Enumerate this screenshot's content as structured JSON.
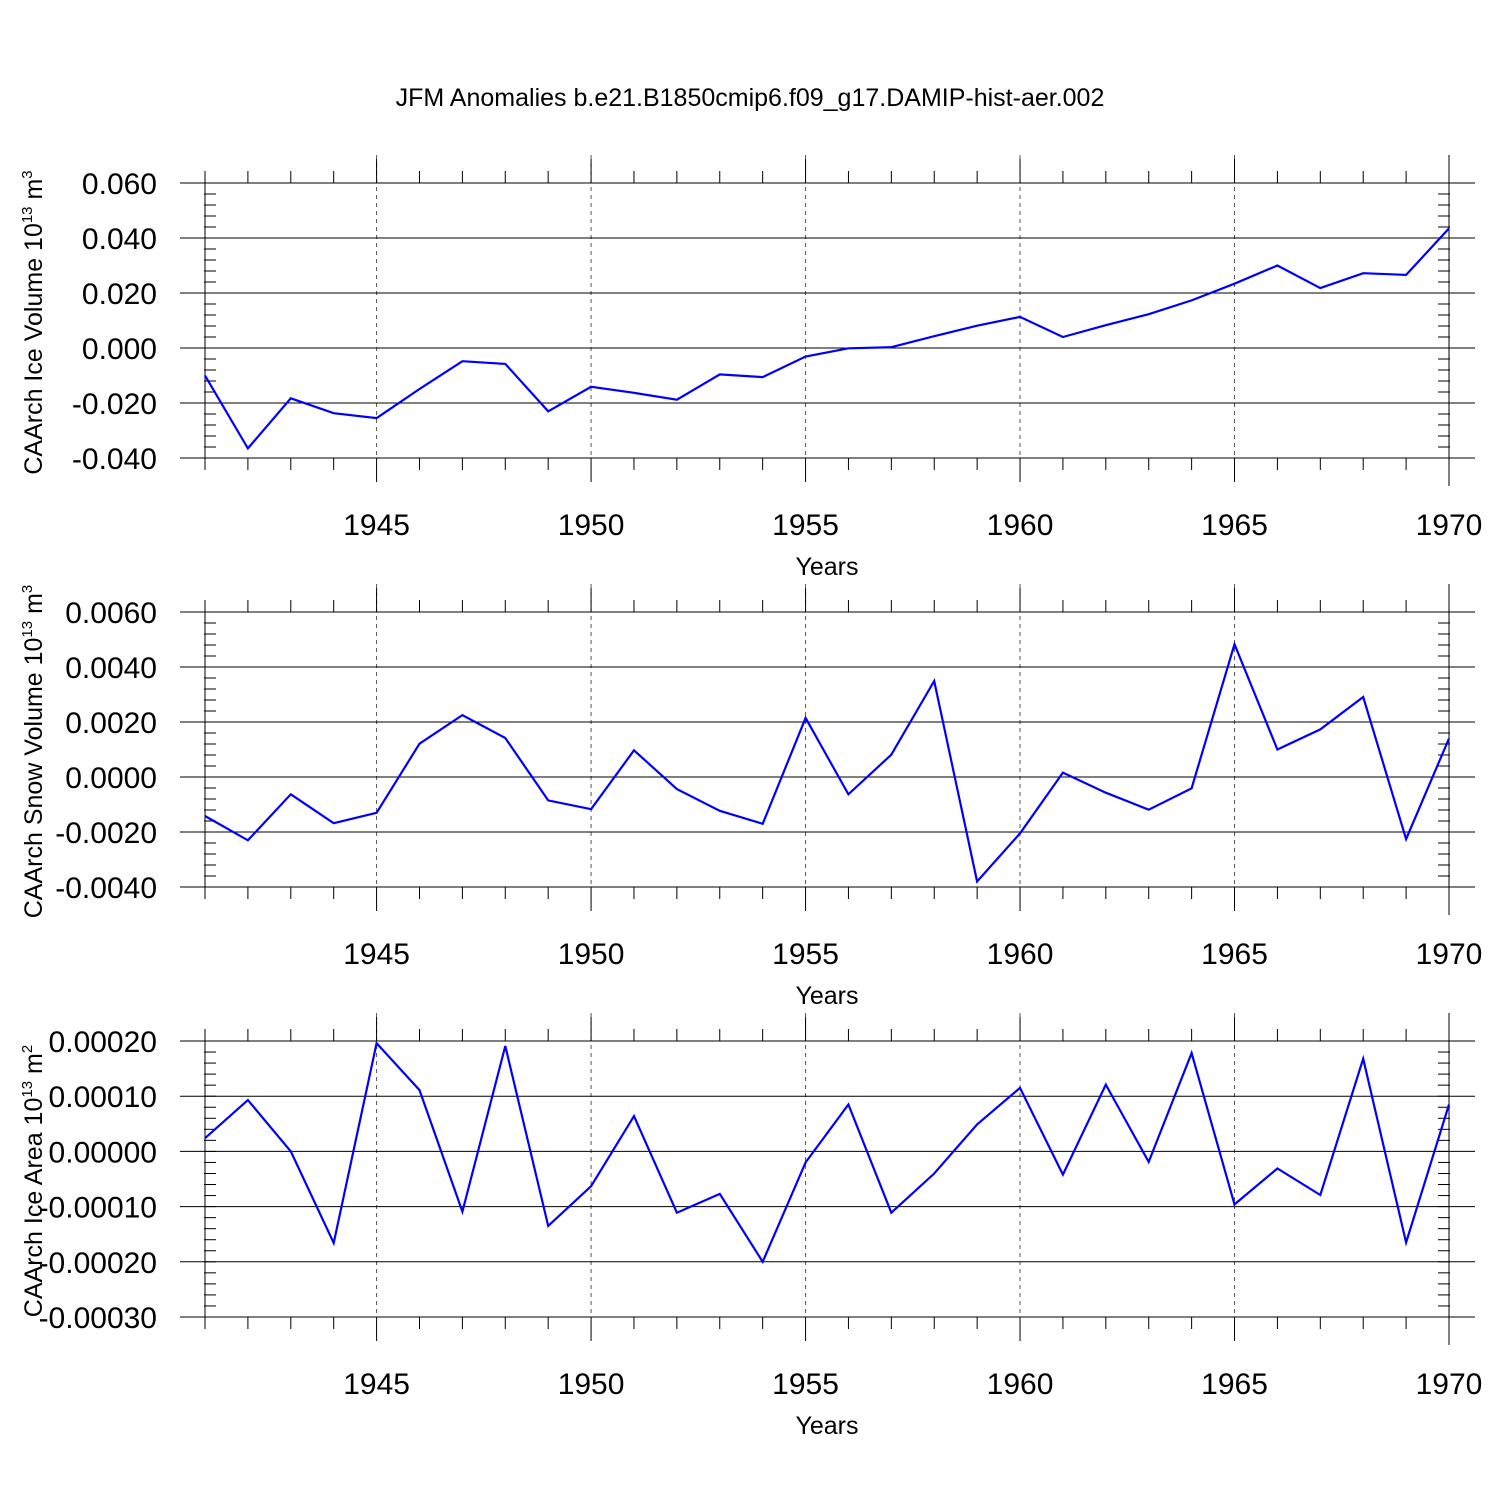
{
  "title": "JFM Anomalies b.e21.B1850cmip6.f09_g17.DAMIP-hist-aer.002",
  "chart_data": [
    {
      "type": "line",
      "ylabel_main": "CAArch Ice Volume 10",
      "ylabel_exp": "13",
      "ylabel_unit": " m",
      "ylabel_unit_exp": "3",
      "xlabel": "Years",
      "xlim": [
        1941,
        1970
      ],
      "ylim": [
        -0.04,
        0.06
      ],
      "yticks": [
        -0.04,
        -0.02,
        0.0,
        0.02,
        0.04,
        0.06
      ],
      "ytick_labels": [
        "-0.040",
        "-0.020",
        "0.000",
        "0.020",
        "0.040",
        "0.060"
      ],
      "xticks": [
        1945,
        1950,
        1955,
        1960,
        1965,
        1970
      ],
      "xtick_labels": [
        "1945",
        "1950",
        "1955",
        "1960",
        "1965",
        "1970"
      ],
      "color": "#0000ff",
      "series": [
        {
          "name": "Ice Volume",
          "x": [
            1941,
            1942,
            1943,
            1944,
            1945,
            1946,
            1947,
            1948,
            1949,
            1950,
            1951,
            1952,
            1953,
            1954,
            1955,
            1956,
            1957,
            1958,
            1959,
            1960,
            1961,
            1962,
            1963,
            1964,
            1965,
            1966,
            1967,
            1968,
            1969,
            1970
          ],
          "values": [
            -0.01,
            -0.0365,
            -0.0183,
            -0.0237,
            -0.0255,
            -0.0149,
            -0.0048,
            -0.0058,
            -0.023,
            -0.0141,
            -0.0163,
            -0.0188,
            -0.0096,
            -0.0106,
            -0.0031,
            -0.0001,
            0.0003,
            0.0043,
            0.0081,
            0.0113,
            0.004,
            0.0083,
            0.0123,
            0.0173,
            0.0234,
            0.03,
            0.0218,
            0.0272,
            0.0266,
            0.0435
          ]
        }
      ]
    },
    {
      "type": "line",
      "ylabel_main": "CAArch Snow Volume 10",
      "ylabel_exp": "13",
      "ylabel_unit": " m",
      "ylabel_unit_exp": "3",
      "xlabel": "Years",
      "xlim": [
        1941,
        1970
      ],
      "ylim": [
        -0.004,
        0.006
      ],
      "yticks": [
        -0.004,
        -0.002,
        0.0,
        0.002,
        0.004,
        0.006
      ],
      "ytick_labels": [
        "-0.0040",
        "-0.0020",
        "0.0000",
        "0.0020",
        "0.0040",
        "0.0060"
      ],
      "xticks": [
        1945,
        1950,
        1955,
        1960,
        1965,
        1970
      ],
      "xtick_labels": [
        "1945",
        "1950",
        "1955",
        "1960",
        "1965",
        "1970"
      ],
      "color": "#0000ff",
      "series": [
        {
          "name": "Snow Volume",
          "x": [
            1941,
            1942,
            1943,
            1944,
            1945,
            1946,
            1947,
            1948,
            1949,
            1950,
            1951,
            1952,
            1953,
            1954,
            1955,
            1956,
            1957,
            1958,
            1959,
            1960,
            1961,
            1962,
            1963,
            1964,
            1965,
            1966,
            1967,
            1968,
            1969,
            1970
          ],
          "values": [
            -0.00142,
            -0.0023,
            -0.00063,
            -0.00168,
            -0.0013,
            0.00121,
            0.00225,
            0.00142,
            -0.00085,
            -0.00117,
            0.00097,
            -0.00044,
            -0.00123,
            -0.0017,
            0.00215,
            -0.00063,
            0.00081,
            0.00349,
            -0.0038,
            -0.00205,
            0.00016,
            -0.00057,
            -0.00119,
            -0.00041,
            0.00483,
            0.001,
            0.00173,
            0.00291,
            -0.00226,
            0.0014
          ]
        }
      ]
    },
    {
      "type": "line",
      "ylabel_main": "CAArch Ice Area 10",
      "ylabel_exp": "13",
      "ylabel_unit": " m",
      "ylabel_unit_exp": "2",
      "xlabel": "Years",
      "xlim": [
        1941,
        1970
      ],
      "ylim": [
        -0.0003,
        0.0002
      ],
      "yticks": [
        -0.0003,
        -0.0002,
        -0.0001,
        0.0,
        0.0001,
        0.0002
      ],
      "ytick_labels": [
        "-0.00030",
        "-0.00020",
        "-0.00010",
        "0.00000",
        "0.00010",
        "0.00020"
      ],
      "xticks": [
        1945,
        1950,
        1955,
        1960,
        1965,
        1970
      ],
      "xtick_labels": [
        "1945",
        "1950",
        "1955",
        "1960",
        "1965",
        "1970"
      ],
      "color": "#0000ff",
      "series": [
        {
          "name": "Ice Area",
          "x": [
            1941,
            1942,
            1943,
            1944,
            1945,
            1946,
            1947,
            1948,
            1949,
            1950,
            1951,
            1952,
            1953,
            1954,
            1955,
            1956,
            1957,
            1958,
            1959,
            1960,
            1961,
            1962,
            1963,
            1964,
            1965,
            1966,
            1967,
            1968,
            1969,
            1970
          ],
          "values": [
            2.4e-05,
            9.3e-05,
            0.0,
            -0.000166,
            0.000196,
            0.000111,
            -0.000109,
            0.000191,
            -0.000135,
            -6.3e-05,
            6.4e-05,
            -0.000111,
            -7.7e-05,
            -0.0002,
            -2e-05,
            8.5e-05,
            -0.000111,
            -4e-05,
            4.9e-05,
            0.000115,
            -4.2e-05,
            0.000121,
            -1.9e-05,
            0.000178,
            -9.6e-05,
            -3.1e-05,
            -7.9e-05,
            0.000168,
            -0.000165,
            8.5e-05
          ]
        }
      ]
    }
  ]
}
